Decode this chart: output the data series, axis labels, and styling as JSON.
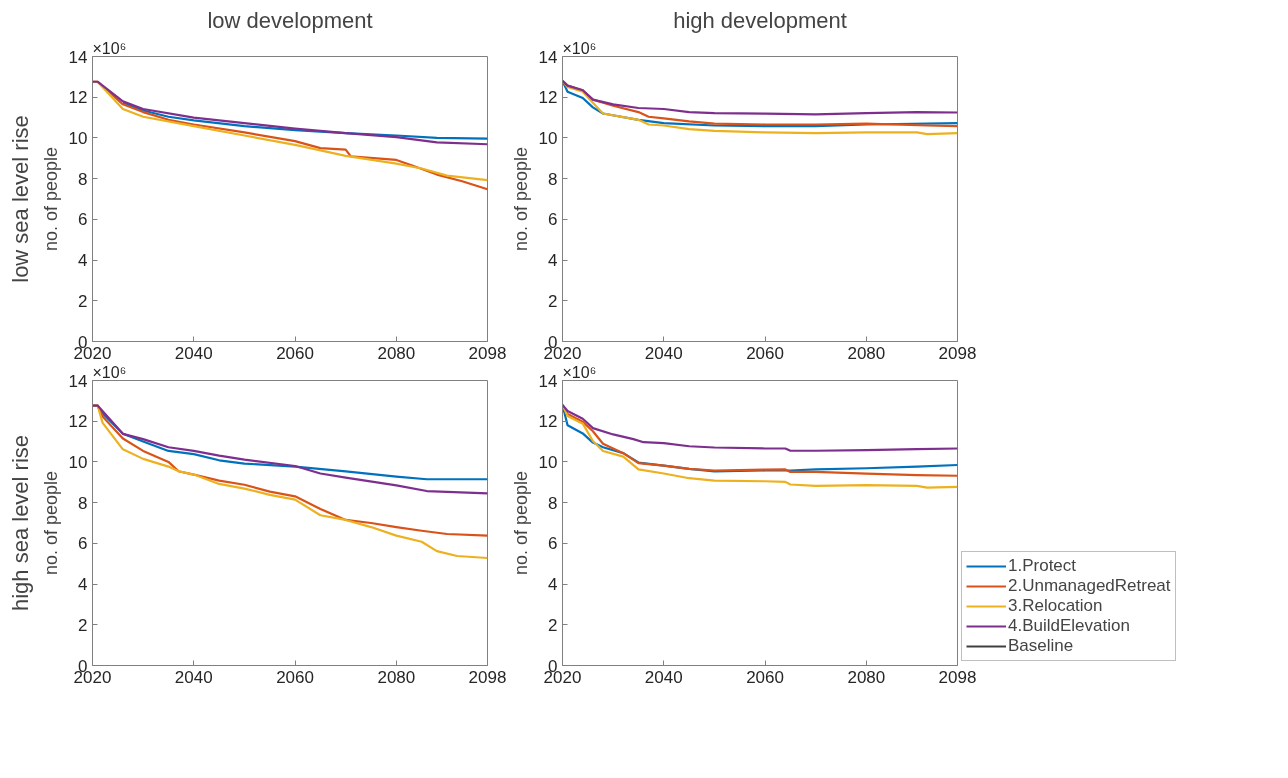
{
  "chart_data": [
    {
      "type": "line",
      "title": "low development",
      "subtitle": "low sea level rise",
      "ylabel": "no. of people",
      "annotations": [
        "×10⁶"
      ],
      "xlim": [
        2020,
        2098
      ],
      "xticks": [
        2020,
        2040,
        2060,
        2080,
        2098
      ],
      "ylim": [
        0,
        14
      ],
      "yticks": [
        0,
        2,
        4,
        6,
        8,
        10,
        12,
        14
      ],
      "grid": false,
      "legend": false,
      "series": [
        {
          "color": "#0072bd",
          "x": [
            2026,
            2030,
            2035,
            2040,
            2050,
            2060,
            2070,
            2080,
            2088,
            2098
          ],
          "values": [
            11.73,
            11.35,
            11.04,
            10.86,
            10.58,
            10.38,
            10.24,
            10.12,
            10.0,
            9.97
          ]
        },
        {
          "color": "#d95319",
          "x": [
            2020,
            2021,
            2026,
            2030,
            2035,
            2040,
            2050,
            2060,
            2065,
            2070,
            2071,
            2080,
            2083,
            2088,
            2093,
            2098
          ],
          "values": [
            12.76,
            12.76,
            11.65,
            11.27,
            10.89,
            10.66,
            10.27,
            9.84,
            9.5,
            9.43,
            9.09,
            8.92,
            8.66,
            8.2,
            7.87,
            7.48
          ]
        },
        {
          "color": "#edb120",
          "x": [
            2020,
            2021,
            2026,
            2030,
            2040,
            2050,
            2060,
            2070,
            2080,
            2085,
            2090,
            2098
          ],
          "values": [
            12.76,
            12.76,
            11.42,
            11.04,
            10.58,
            10.12,
            9.66,
            9.12,
            8.74,
            8.5,
            8.15,
            7.93
          ]
        },
        {
          "color": "#7e2f8e",
          "x": [
            2020,
            2021,
            2026,
            2030,
            2040,
            2050,
            2060,
            2070,
            2080,
            2088,
            2098
          ],
          "values": [
            12.76,
            12.76,
            11.8,
            11.42,
            11.0,
            10.73,
            10.46,
            10.24,
            10.04,
            9.78,
            9.69
          ]
        }
      ]
    },
    {
      "type": "line",
      "title": "high development",
      "ylabel": "no. of people",
      "annotations": [
        "×10⁶"
      ],
      "xlim": [
        2020,
        2098
      ],
      "xticks": [
        2020,
        2040,
        2060,
        2080,
        2098
      ],
      "ylim": [
        0,
        14
      ],
      "yticks": [
        0,
        2,
        4,
        6,
        8,
        10,
        12,
        14
      ],
      "grid": false,
      "legend": false,
      "series": [
        {
          "color": "#0072bd",
          "x": [
            2020,
            2021,
            2024,
            2026,
            2028,
            2035,
            2040,
            2050,
            2060,
            2070,
            2080,
            2098
          ],
          "values": [
            12.8,
            12.27,
            11.96,
            11.5,
            11.2,
            10.89,
            10.73,
            10.61,
            10.58,
            10.58,
            10.66,
            10.73
          ]
        },
        {
          "color": "#d95319",
          "x": [
            2020,
            2021,
            2024,
            2026,
            2030,
            2035,
            2037,
            2040,
            2045,
            2050,
            2060,
            2070,
            2080,
            2092,
            2098
          ],
          "values": [
            12.8,
            12.57,
            12.34,
            11.88,
            11.58,
            11.27,
            11.04,
            10.96,
            10.81,
            10.7,
            10.66,
            10.66,
            10.7,
            10.61,
            10.58
          ]
        },
        {
          "color": "#edb120",
          "x": [
            2020,
            2021,
            2024,
            2026,
            2028,
            2035,
            2037,
            2040,
            2045,
            2050,
            2060,
            2070,
            2080,
            2090,
            2092,
            2098
          ],
          "values": [
            12.8,
            12.5,
            12.27,
            11.73,
            11.2,
            10.89,
            10.66,
            10.61,
            10.43,
            10.35,
            10.27,
            10.24,
            10.27,
            10.27,
            10.19,
            10.24
          ]
        },
        {
          "color": "#7e2f8e",
          "x": [
            2020,
            2021,
            2024,
            2026,
            2030,
            2035,
            2040,
            2045,
            2050,
            2060,
            2070,
            2080,
            2090,
            2098
          ],
          "values": [
            12.8,
            12.57,
            12.34,
            11.88,
            11.65,
            11.47,
            11.42,
            11.27,
            11.22,
            11.19,
            11.16,
            11.22,
            11.27,
            11.25
          ]
        }
      ]
    },
    {
      "type": "line",
      "subtitle": "high sea level rise",
      "ylabel": "no. of people",
      "annotations": [
        "×10⁶"
      ],
      "xlim": [
        2020,
        2098
      ],
      "xticks": [
        2020,
        2040,
        2060,
        2080,
        2098
      ],
      "ylim": [
        0,
        14
      ],
      "yticks": [
        0,
        2,
        4,
        6,
        8,
        10,
        12,
        14
      ],
      "grid": false,
      "legend": false,
      "series": [
        {
          "color": "#0072bd",
          "x": [
            2020,
            2021,
            2022,
            2026,
            2030,
            2035,
            2040,
            2045,
            2050,
            2060,
            2070,
            2080,
            2086,
            2098
          ],
          "values": [
            12.77,
            12.77,
            12.38,
            11.38,
            11.0,
            10.54,
            10.38,
            10.08,
            9.92,
            9.77,
            9.54,
            9.28,
            9.15,
            9.15
          ]
        },
        {
          "color": "#d95319",
          "x": [
            2020,
            2021,
            2022,
            2026,
            2030,
            2035,
            2037,
            2040,
            2045,
            2050,
            2055,
            2060,
            2065,
            2070,
            2075,
            2080,
            2085,
            2090,
            2098
          ],
          "values": [
            12.77,
            12.77,
            12.23,
            11.15,
            10.54,
            10.0,
            9.54,
            9.38,
            9.08,
            8.88,
            8.54,
            8.31,
            7.69,
            7.15,
            7.0,
            6.8,
            6.62,
            6.46,
            6.38
          ]
        },
        {
          "color": "#edb120",
          "x": [
            2020,
            2021,
            2022,
            2026,
            2030,
            2035,
            2037,
            2040,
            2045,
            2050,
            2055,
            2060,
            2065,
            2070,
            2075,
            2080,
            2085,
            2088,
            2092,
            2098
          ],
          "values": [
            12.77,
            12.77,
            11.92,
            10.62,
            10.15,
            9.77,
            9.54,
            9.38,
            8.92,
            8.69,
            8.38,
            8.15,
            7.38,
            7.15,
            6.8,
            6.38,
            6.08,
            5.62,
            5.38,
            5.28
          ]
        },
        {
          "color": "#7e2f8e",
          "x": [
            2020,
            2021,
            2026,
            2030,
            2035,
            2040,
            2045,
            2050,
            2060,
            2065,
            2070,
            2080,
            2086,
            2098
          ],
          "values": [
            12.77,
            12.77,
            11.38,
            11.12,
            10.72,
            10.54,
            10.31,
            10.11,
            9.8,
            9.43,
            9.23,
            8.85,
            8.57,
            8.46
          ]
        }
      ]
    },
    {
      "type": "line",
      "ylabel": "no. of people",
      "annotations": [
        "×10⁶"
      ],
      "xlim": [
        2020,
        2098
      ],
      "xticks": [
        2020,
        2040,
        2060,
        2080,
        2098
      ],
      "ylim": [
        0,
        14
      ],
      "yticks": [
        0,
        2,
        4,
        6,
        8,
        10,
        12,
        14
      ],
      "grid": false,
      "legend": "right",
      "series": [
        {
          "name": "1.Protect",
          "color": "#0072bd",
          "x": [
            2020,
            2021,
            2024,
            2026,
            2028,
            2032,
            2035,
            2040,
            2045,
            2050,
            2060,
            2065,
            2070,
            2080,
            2090,
            2098
          ],
          "values": [
            12.8,
            11.8,
            11.4,
            10.95,
            10.72,
            10.43,
            9.97,
            9.82,
            9.66,
            9.54,
            9.58,
            9.58,
            9.63,
            9.69,
            9.77,
            9.85
          ]
        },
        {
          "name": "2.UnmanagedRetreat",
          "color": "#d95319",
          "x": [
            2020,
            2021,
            2024,
            2026,
            2028,
            2032,
            2035,
            2040,
            2045,
            2050,
            2060,
            2064,
            2065,
            2070,
            2080,
            2090,
            2098
          ],
          "values": [
            12.8,
            12.35,
            11.97,
            11.51,
            10.89,
            10.43,
            9.94,
            9.82,
            9.66,
            9.58,
            9.62,
            9.63,
            9.51,
            9.51,
            9.43,
            9.35,
            9.32
          ]
        },
        {
          "name": "3.Relocation",
          "color": "#edb120",
          "x": [
            2020,
            2021,
            2024,
            2026,
            2028,
            2032,
            2035,
            2040,
            2045,
            2050,
            2060,
            2064,
            2065,
            2070,
            2080,
            2090,
            2092,
            2098
          ],
          "values": [
            12.8,
            12.26,
            11.88,
            11.03,
            10.54,
            10.26,
            9.63,
            9.43,
            9.2,
            9.08,
            9.05,
            9.02,
            8.89,
            8.82,
            8.86,
            8.82,
            8.74,
            8.77
          ]
        },
        {
          "name": "4.BuildElevation",
          "color": "#7e2f8e",
          "x": [
            2020,
            2021,
            2024,
            2026,
            2030,
            2034,
            2036,
            2040,
            2045,
            2050,
            2060,
            2064,
            2065,
            2070,
            2080,
            2090,
            2098
          ],
          "values": [
            12.8,
            12.5,
            12.12,
            11.66,
            11.35,
            11.12,
            10.97,
            10.92,
            10.77,
            10.71,
            10.66,
            10.66,
            10.55,
            10.55,
            10.58,
            10.63,
            10.66
          ]
        },
        {
          "name": "Baseline",
          "color": "#404040"
        }
      ]
    }
  ]
}
